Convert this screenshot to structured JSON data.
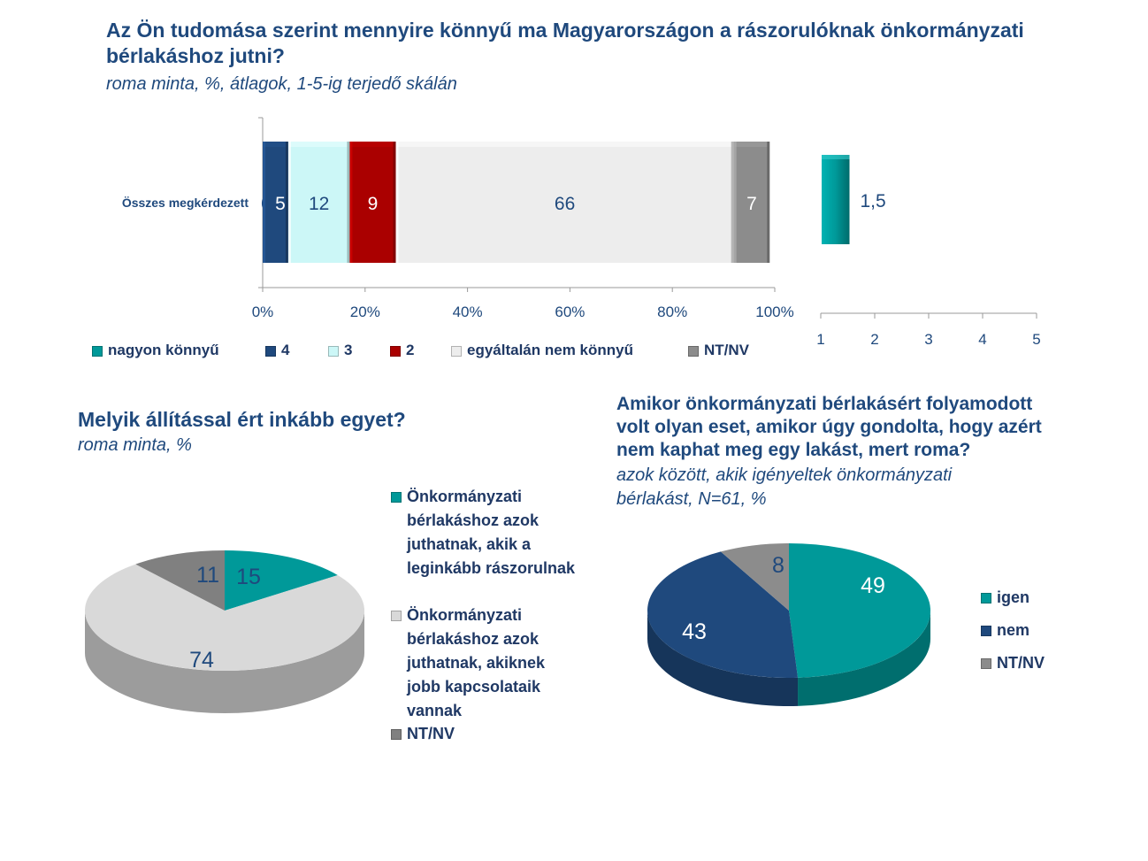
{
  "colors": {
    "nagyon_konnyu": "#009999",
    "c4": "#1F497D",
    "c3": "#CCF7F7",
    "c2": "#AA0000",
    "egyaltalan": "#EDEDED",
    "ntnv": "#8C8C8C",
    "text": "#1F497D"
  },
  "top": {
    "title_line1": "Az Ön tudomása szerint mennyire könnyű ma Magyarországon a rászorulóknak önkormányzati",
    "title_line2": "bérlakáshoz jutni?",
    "subtitle": "roma minta, %, átlagok, 1-5-ig terjedő skálán"
  },
  "pie1": {
    "title": "Melyik állítással ért inkább egyet?",
    "subtitle": "roma minta, %"
  },
  "pie2": {
    "title_line1": "Amikor önkormányzati bérlakásért folyamodott",
    "title_line2": "volt olyan eset, amikor úgy gondolta, hogy azért",
    "title_line3": "nem kaphat meg egy lakást, mert roma?",
    "subtitle_line1": "azok között, akik igényeltek önkormányzati",
    "subtitle_line2": "bérlakást, N=61, %"
  },
  "chart_data": [
    {
      "type": "bar",
      "orientation": "horizontal",
      "stacked": true,
      "categories": [
        "Összes megkérdezett"
      ],
      "series": [
        {
          "name": "nagyon könnyű",
          "values": [
            0
          ],
          "label": "0"
        },
        {
          "name": "4",
          "values": [
            5
          ],
          "label": "5"
        },
        {
          "name": "3",
          "values": [
            12
          ],
          "label": "12"
        },
        {
          "name": "2",
          "values": [
            9
          ],
          "label": "9"
        },
        {
          "name": "egyáltalán nem könnyű",
          "values": [
            66
          ],
          "label": "66"
        },
        {
          "name": "NT/NV",
          "values": [
            7
          ],
          "label": "7"
        }
      ],
      "xticks": [
        "0%",
        "20%",
        "40%",
        "60%",
        "80%",
        "100%"
      ],
      "xlim": [
        0,
        100
      ],
      "legend": "bottom"
    },
    {
      "type": "bar",
      "orientation": "horizontal",
      "categories": [
        ""
      ],
      "values": [
        1.5
      ],
      "value_label": "1,5",
      "xticks": [
        "1",
        "2",
        "3",
        "4",
        "5"
      ],
      "xlim": [
        1,
        5
      ]
    },
    {
      "type": "pie",
      "labels": [
        "Önkormányzati bérlakáshoz azok juthatnak, akik a leginkább rászorulnak",
        "Önkormányzati bérlakáshoz azok juthatnak, akiknek jobb kapcsolataik vannak",
        "NT/NV"
      ],
      "legend_lines": [
        [
          "Önkormányzati",
          "bérlakáshoz azok",
          "juthatnak, akik a",
          "leginkább rászorulnak"
        ],
        [
          "Önkormányzati",
          "bérlakáshoz azok",
          "juthatnak, akiknek",
          "jobb kapcsolataik",
          "vannak"
        ],
        [
          "NT/NV"
        ]
      ],
      "values": [
        15,
        74,
        11
      ],
      "legend": "right"
    },
    {
      "type": "pie",
      "labels": [
        "igen",
        "nem",
        "NT/NV"
      ],
      "values": [
        49,
        43,
        8
      ],
      "legend": "right"
    }
  ]
}
